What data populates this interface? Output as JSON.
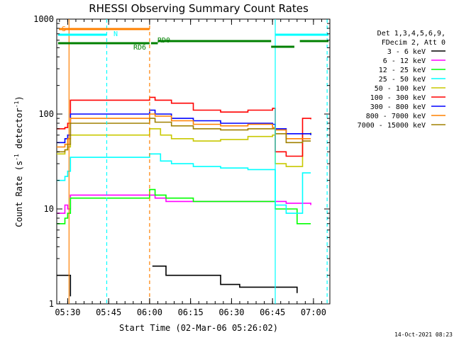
{
  "chart_data": {
    "type": "line",
    "title": "RHESSI Observing Summary Count Rates",
    "xlabel": "Start Time (02-Mar-06 05:26:02)",
    "ylabel": "Count Rate (s",
    "ylabel_sup": "-1",
    "ylabel_tail": " detector",
    "ylabel_sup2": "-1",
    "ylabel_close": ")",
    "xlim": [
      0,
      100
    ],
    "y_scale": "log",
    "ylim": [
      1,
      1000
    ],
    "x_ticks": [
      {
        "x": 4,
        "label": "05:30"
      },
      {
        "x": 19,
        "label": "05:45"
      },
      {
        "x": 34,
        "label": "06:00"
      },
      {
        "x": 49,
        "label": "06:15"
      },
      {
        "x": 64,
        "label": "06:30"
      },
      {
        "x": 79,
        "label": "06:45"
      },
      {
        "x": 94,
        "label": "07:00"
      }
    ],
    "y_ticks": [
      {
        "v": 1,
        "label": "1"
      },
      {
        "v": 10,
        "label": "10"
      },
      {
        "v": 100,
        "label": "100"
      },
      {
        "v": 1000,
        "label": "1000"
      }
    ],
    "legend_header": [
      "Det 1,3,4,5,6,9,",
      "FDecim 2, Att 0"
    ],
    "series": [
      {
        "name": "3 - 6 keV",
        "color": "#000000",
        "values": [
          [
            0,
            2
          ],
          [
            5,
            1.2
          ],
          [
            10,
            null
          ],
          [
            34,
            null
          ],
          [
            35,
            2.5
          ],
          [
            40,
            2
          ],
          [
            50,
            2
          ],
          [
            60,
            1.6
          ],
          [
            67,
            1.5
          ],
          [
            75,
            1.5
          ],
          [
            79,
            1.5
          ],
          [
            84,
            1.5
          ],
          [
            88,
            1.3
          ]
        ]
      },
      {
        "name": "6 - 12 keV",
        "color": "#ff00ff",
        "values": [
          [
            0,
            9
          ],
          [
            3,
            11
          ],
          [
            4,
            10
          ],
          [
            5,
            14
          ],
          [
            34,
            14
          ],
          [
            36,
            13
          ],
          [
            40,
            12
          ],
          [
            50,
            12
          ],
          [
            60,
            12
          ],
          [
            70,
            12
          ],
          [
            79,
            12
          ],
          [
            84,
            11.5
          ],
          [
            90,
            11.5
          ],
          [
            93,
            11
          ]
        ]
      },
      {
        "name": "12 - 25 keV",
        "color": "#00ff00",
        "values": [
          [
            0,
            7
          ],
          [
            3,
            8
          ],
          [
            4,
            9
          ],
          [
            5,
            13
          ],
          [
            34,
            16
          ],
          [
            36,
            14
          ],
          [
            40,
            13
          ],
          [
            50,
            12
          ],
          [
            60,
            12
          ],
          [
            70,
            12
          ],
          [
            79,
            12
          ],
          [
            80,
            10
          ],
          [
            84,
            10
          ],
          [
            88,
            7
          ],
          [
            92,
            7
          ],
          [
            93,
            7
          ]
        ]
      },
      {
        "name": "25 - 50 keV",
        "color": "#00ffff",
        "values": [
          [
            0,
            20
          ],
          [
            3,
            22
          ],
          [
            4,
            25
          ],
          [
            5,
            35
          ],
          [
            34,
            38
          ],
          [
            38,
            32
          ],
          [
            42,
            30
          ],
          [
            50,
            28
          ],
          [
            60,
            27
          ],
          [
            70,
            26
          ],
          [
            79,
            26
          ],
          [
            80,
            11
          ],
          [
            84,
            9
          ],
          [
            90,
            24
          ],
          [
            93,
            24
          ]
        ]
      },
      {
        "name": "50 - 100 keV",
        "color": "#c8c800",
        "values": [
          [
            0,
            38
          ],
          [
            3,
            42
          ],
          [
            4,
            45
          ],
          [
            5,
            60
          ],
          [
            34,
            70
          ],
          [
            38,
            60
          ],
          [
            42,
            55
          ],
          [
            50,
            52
          ],
          [
            60,
            54
          ],
          [
            70,
            58
          ],
          [
            79,
            60
          ],
          [
            80,
            30
          ],
          [
            84,
            28
          ],
          [
            90,
            62
          ],
          [
            93,
            64
          ]
        ]
      },
      {
        "name": "100 - 300 keV",
        "color": "#ff0000",
        "values": [
          [
            0,
            70
          ],
          [
            3,
            72
          ],
          [
            4,
            80
          ],
          [
            5,
            140
          ],
          [
            34,
            150
          ],
          [
            36,
            140
          ],
          [
            42,
            130
          ],
          [
            50,
            110
          ],
          [
            60,
            105
          ],
          [
            70,
            110
          ],
          [
            79,
            115
          ],
          [
            80,
            40
          ],
          [
            84,
            36
          ],
          [
            90,
            90
          ],
          [
            93,
            88
          ]
        ]
      },
      {
        "name": "300 - 800 keV",
        "color": "#0000ff",
        "values": [
          [
            0,
            50
          ],
          [
            3,
            55
          ],
          [
            4,
            60
          ],
          [
            5,
            100
          ],
          [
            34,
            110
          ],
          [
            36,
            100
          ],
          [
            42,
            90
          ],
          [
            50,
            85
          ],
          [
            60,
            80
          ],
          [
            70,
            80
          ],
          [
            79,
            78
          ],
          [
            80,
            70
          ],
          [
            84,
            62
          ],
          [
            90,
            62
          ],
          [
            93,
            60
          ]
        ]
      },
      {
        "name": "800 - 7000 keV",
        "color": "#ff8000",
        "values": [
          [
            0,
            45
          ],
          [
            3,
            48
          ],
          [
            4,
            55
          ],
          [
            5,
            90
          ],
          [
            34,
            100
          ],
          [
            36,
            95
          ],
          [
            42,
            85
          ],
          [
            50,
            78
          ],
          [
            60,
            75
          ],
          [
            70,
            78
          ],
          [
            79,
            72
          ],
          [
            80,
            68
          ],
          [
            84,
            55
          ],
          [
            90,
            55
          ],
          [
            93,
            55
          ]
        ]
      },
      {
        "name": "7000 - 15000 keV",
        "color": "#a08000",
        "values": [
          [
            0,
            40
          ],
          [
            3,
            42
          ],
          [
            4,
            48
          ],
          [
            5,
            80
          ],
          [
            34,
            90
          ],
          [
            36,
            82
          ],
          [
            42,
            75
          ],
          [
            50,
            70
          ],
          [
            60,
            68
          ],
          [
            70,
            70
          ],
          [
            79,
            70
          ],
          [
            80,
            62
          ],
          [
            84,
            50
          ],
          [
            90,
            52
          ],
          [
            93,
            52
          ]
        ]
      }
    ],
    "status_bars": [
      {
        "label": "S",
        "color": "#ff8000",
        "x0": 0.8,
        "x1": 34
      },
      {
        "label": "N",
        "color": "#00ffff",
        "x0": 0.5,
        "x1": 18.3
      },
      {
        "label": "N",
        "color": "#00ffff",
        "x0": 80,
        "x1": 99.5
      },
      {
        "label": "RD6",
        "color": "#008000",
        "x0": 0.5,
        "x1": 34
      },
      {
        "label": "RD6",
        "color": "#008000",
        "x0": 34.5,
        "x1": 37
      },
      {
        "label": "RD0",
        "color": "#008000",
        "x0": 37,
        "x1": 78.5
      },
      {
        "label": "RD0",
        "color": "#008000",
        "x0": 78.5,
        "x1": 87
      },
      {
        "label": "RD0",
        "color": "#008000",
        "x0": 89,
        "x1": 99.5
      }
    ],
    "visible_labels": [
      "S",
      "N",
      "RD6",
      "RD0"
    ],
    "vlines": [
      {
        "x": 4.5,
        "color": "#ff8000",
        "dash": false
      },
      {
        "x": 18.3,
        "color": "#00ffff",
        "dash": true
      },
      {
        "x": 34,
        "color": "#ff8000",
        "dash": true
      },
      {
        "x": 80,
        "color": "#00ffff",
        "dash": false
      },
      {
        "x": 99,
        "color": "#00ffff",
        "dash": true
      }
    ],
    "grid": false,
    "legend_position": "right"
  },
  "footer_date": "14-Oct-2021 08:23"
}
